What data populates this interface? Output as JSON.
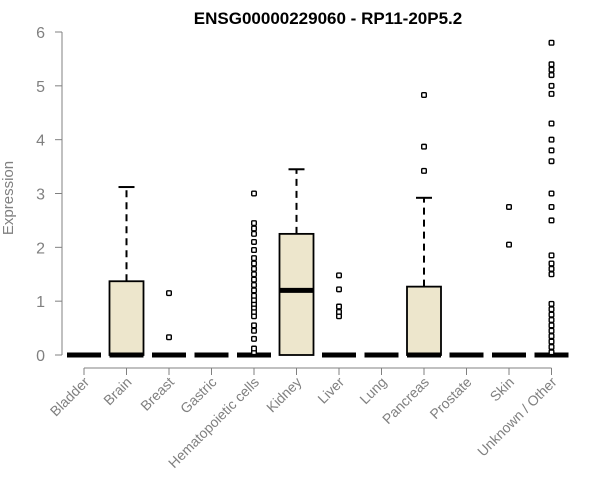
{
  "chart_data": {
    "type": "box",
    "title": "ENSG00000229060 - RP11-20P5.2",
    "ylabel": "Expression",
    "xlabel": "",
    "ylim": [
      0,
      6
    ],
    "yticks": [
      0,
      1,
      2,
      3,
      4,
      5,
      6
    ],
    "grid": false,
    "colors": {
      "box_fill": "#ede6cc",
      "stroke": "#000000",
      "axis": "#808080"
    },
    "categories": [
      "Bladder",
      "Brain",
      "Breast",
      "Gastric",
      "Hematopoietic cells",
      "Kidney",
      "Liver",
      "Lung",
      "Pancreas",
      "Prostate",
      "Skin",
      "Unknown / Other"
    ],
    "boxes": [
      {
        "q1": 0,
        "median": 0,
        "q3": 0,
        "whisker_low": 0,
        "whisker_high": 0,
        "outliers": []
      },
      {
        "q1": 0,
        "median": 0,
        "q3": 1.37,
        "whisker_low": 0,
        "whisker_high": 3.12,
        "outliers": []
      },
      {
        "q1": 0,
        "median": 0,
        "q3": 0,
        "whisker_low": 0,
        "whisker_high": 0,
        "outliers": [
          0.33,
          1.15
        ]
      },
      {
        "q1": 0,
        "median": 0,
        "q3": 0,
        "whisker_low": 0,
        "whisker_high": 0,
        "outliers": []
      },
      {
        "q1": 0,
        "median": 0,
        "q3": 0,
        "whisker_low": 0,
        "whisker_high": 0,
        "outliers": [
          0.05,
          0.12,
          0.3,
          0.45,
          0.55,
          0.72,
          0.8,
          0.88,
          0.95,
          1.02,
          1.1,
          1.2,
          1.3,
          1.4,
          1.5,
          1.6,
          1.7,
          1.8,
          1.95,
          2.1,
          2.25,
          2.35,
          2.45,
          3.0
        ]
      },
      {
        "q1": 0,
        "median": 1.2,
        "q3": 2.25,
        "whisker_low": 0,
        "whisker_high": 3.45,
        "outliers": []
      },
      {
        "q1": 0,
        "median": 0,
        "q3": 0,
        "whisker_low": 0,
        "whisker_high": 0,
        "outliers": [
          0.72,
          0.8,
          0.9,
          1.22,
          1.48
        ]
      },
      {
        "q1": 0,
        "median": 0,
        "q3": 0,
        "whisker_low": 0,
        "whisker_high": 0,
        "outliers": []
      },
      {
        "q1": 0,
        "median": 0,
        "q3": 1.27,
        "whisker_low": 0,
        "whisker_high": 2.92,
        "outliers": [
          3.42,
          3.87,
          4.83
        ]
      },
      {
        "q1": 0,
        "median": 0,
        "q3": 0,
        "whisker_low": 0,
        "whisker_high": 0,
        "outliers": []
      },
      {
        "q1": 0,
        "median": 0,
        "q3": 0,
        "whisker_low": 0,
        "whisker_high": 0,
        "outliers": [
          2.05,
          2.75
        ]
      },
      {
        "q1": 0,
        "median": 0,
        "q3": 0,
        "whisker_low": 0,
        "whisker_high": 0,
        "outliers": [
          0.05,
          0.15,
          0.25,
          0.35,
          0.45,
          0.55,
          0.65,
          0.75,
          0.85,
          0.95,
          1.5,
          1.6,
          1.7,
          1.85,
          2.5,
          2.75,
          3.0,
          3.6,
          3.8,
          4.0,
          4.3,
          4.85,
          5.0,
          5.2,
          5.3,
          5.4,
          5.8
        ]
      }
    ]
  }
}
